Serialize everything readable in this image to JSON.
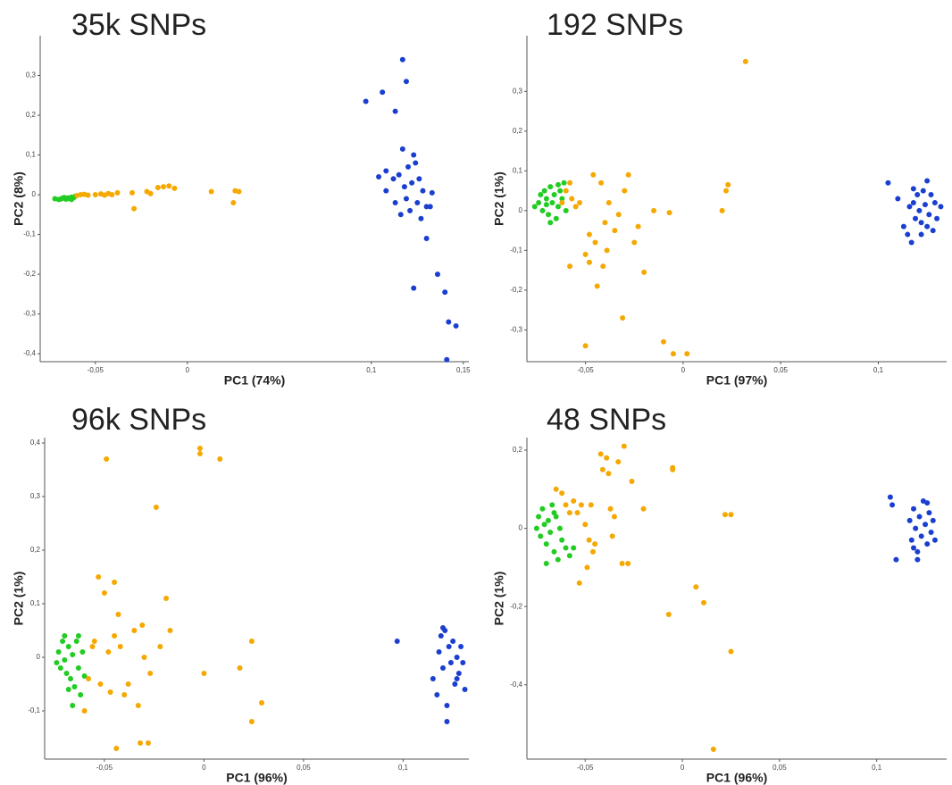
{
  "chart_data": [
    {
      "type": "scatter",
      "title": "35k SNPs",
      "x_label": "PC1 (74%)",
      "y_label": "PC2 (8%)",
      "xlim": [
        -0.08,
        0.153
      ],
      "ylim": [
        -0.42,
        0.4
      ],
      "xticks": [
        {
          "value": -0.05,
          "label": "-0,05"
        },
        0,
        {
          "value": 0.1,
          "label": "0,1"
        },
        {
          "value": 0.15,
          "label": "0,15"
        }
      ],
      "yticks": [
        {
          "value": 0.3,
          "label": "0,3"
        },
        {
          "value": 0.2,
          "label": "0,2"
        },
        {
          "value": 0.1,
          "label": "0,1"
        },
        0,
        {
          "value": -0.1,
          "label": "-0,1"
        },
        {
          "value": -0.2,
          "label": "-0,2"
        },
        {
          "value": -0.3,
          "label": "-0,3"
        },
        {
          "value": -0.4,
          "label": "-0,4"
        }
      ],
      "series": [
        {
          "color": "#22cc22",
          "x": [
            -0.072,
            -0.07,
            -0.068,
            -0.066,
            -0.065,
            -0.064,
            -0.063,
            -0.062,
            -0.061,
            -0.067,
            -0.069,
            -0.063
          ],
          "y": [
            -0.01,
            -0.012,
            -0.009,
            -0.011,
            -0.008,
            -0.01,
            -0.006,
            -0.008,
            -0.004,
            -0.007,
            -0.011,
            -0.012
          ]
        },
        {
          "color": "#f5a800",
          "x": [
            -0.06,
            -0.058,
            -0.056,
            -0.054,
            -0.05,
            -0.047,
            -0.045,
            -0.043,
            -0.041,
            -0.038,
            -0.03,
            -0.029,
            -0.022,
            -0.02,
            -0.016,
            -0.013,
            -0.01,
            -0.007,
            0.013,
            0.025,
            0.026,
            0.028
          ],
          "y": [
            -0.002,
            0,
            0.001,
            -0.001,
            0,
            0.002,
            -0.001,
            0.003,
            0,
            0.005,
            0.005,
            -0.035,
            0.008,
            0.003,
            0.018,
            0.02,
            0.022,
            0.016,
            0.008,
            -0.02,
            0.01,
            0.008
          ]
        },
        {
          "color": "#1a3fd0",
          "x": [
            0.097,
            0.106,
            0.113,
            0.117,
            0.119,
            0.117,
            0.123,
            0.104,
            0.108,
            0.112,
            0.115,
            0.118,
            0.12,
            0.122,
            0.124,
            0.126,
            0.128,
            0.119,
            0.121,
            0.125,
            0.13,
            0.132,
            0.116,
            0.113,
            0.127,
            0.13,
            0.136,
            0.123,
            0.14,
            0.142,
            0.146,
            0.141,
            0.108,
            0.133
          ],
          "y": [
            0.235,
            0.258,
            0.21,
            0.34,
            0.285,
            0.115,
            0.1,
            0.045,
            0.06,
            0.04,
            0.05,
            0.02,
            0.07,
            0.03,
            0.08,
            0.04,
            0.01,
            -0.01,
            -0.04,
            -0.02,
            -0.03,
            -0.03,
            -0.05,
            -0.02,
            -0.06,
            -0.11,
            -0.2,
            -0.235,
            -0.245,
            -0.32,
            -0.33,
            -0.415,
            0.01,
            0.005
          ]
        }
      ]
    },
    {
      "type": "scatter",
      "title": "192 SNPs",
      "x_label": "PC1 (97%)",
      "y_label": "PC2 (1%)",
      "xlim": [
        -0.08,
        0.135
      ],
      "ylim": [
        -0.38,
        0.44
      ],
      "xticks": [
        {
          "value": -0.05,
          "label": "-0,05"
        },
        0,
        {
          "value": 0.05,
          "label": "0,05"
        },
        {
          "value": 0.1,
          "label": "0,1"
        }
      ],
      "yticks": [
        {
          "value": 0.3,
          "label": "0,3"
        },
        {
          "value": 0.2,
          "label": "0,2"
        },
        {
          "value": 0.1,
          "label": "0,1"
        },
        0,
        {
          "value": -0.1,
          "label": "-0,1"
        },
        {
          "value": -0.2,
          "label": "-0,2"
        },
        {
          "value": -0.3,
          "label": "-0,3"
        }
      ],
      "series": [
        {
          "color": "#22cc22",
          "x": [
            -0.076,
            -0.074,
            -0.073,
            -0.072,
            -0.071,
            -0.07,
            -0.069,
            -0.068,
            -0.067,
            -0.066,
            -0.065,
            -0.064,
            -0.063,
            -0.062,
            -0.061,
            -0.06,
            -0.068,
            -0.07,
            -0.064
          ],
          "y": [
            0.01,
            0.02,
            0.04,
            0,
            0.05,
            0.03,
            -0.01,
            0.06,
            0.02,
            0.04,
            -0.02,
            0.01,
            0.05,
            0.03,
            0.07,
            0,
            -0.03,
            0.015,
            0.065
          ]
        },
        {
          "color": "#f5a800",
          "x": [
            -0.062,
            -0.06,
            -0.058,
            -0.057,
            -0.055,
            -0.053,
            -0.058,
            -0.05,
            -0.048,
            -0.046,
            -0.045,
            -0.044,
            -0.042,
            -0.04,
            -0.039,
            -0.038,
            -0.035,
            -0.033,
            -0.031,
            -0.03,
            -0.028,
            -0.025,
            -0.023,
            -0.02,
            -0.015,
            -0.01,
            -0.007,
            -0.005,
            0.002,
            0.02,
            0.022,
            0.023,
            0.032,
            -0.05,
            -0.048,
            -0.041
          ],
          "y": [
            0.02,
            0.05,
            0.07,
            0.03,
            0.01,
            0.02,
            -0.14,
            -0.11,
            -0.06,
            0.09,
            -0.08,
            -0.19,
            0.07,
            -0.03,
            -0.1,
            0.02,
            -0.05,
            -0.01,
            -0.27,
            0.05,
            0.09,
            -0.08,
            -0.04,
            -0.155,
            0,
            -0.33,
            -0.005,
            -0.36,
            -0.36,
            0,
            0.05,
            0.065,
            0.375,
            -0.34,
            -0.13,
            -0.14
          ]
        },
        {
          "color": "#1a3fd0",
          "x": [
            0.105,
            0.11,
            0.113,
            0.115,
            0.116,
            0.117,
            0.118,
            0.119,
            0.12,
            0.121,
            0.122,
            0.123,
            0.124,
            0.125,
            0.126,
            0.127,
            0.128,
            0.129,
            0.13,
            0.132,
            0.122,
            0.118,
            0.125
          ],
          "y": [
            0.07,
            0.03,
            -0.04,
            -0.06,
            0.01,
            -0.08,
            0.02,
            -0.02,
            0.04,
            0,
            -0.03,
            0.05,
            0.015,
            0.075,
            -0.01,
            0.04,
            -0.05,
            0.02,
            -0.02,
            0.01,
            -0.06,
            0.055,
            -0.04
          ]
        }
      ]
    },
    {
      "type": "scatter",
      "title": "96k SNPs",
      "x_label": "PC1 (96%)",
      "y_label": "PC2 (1%)",
      "xlim": [
        -0.08,
        0.133
      ],
      "ylim": [
        -0.19,
        0.41
      ],
      "xticks": [
        {
          "value": -0.05,
          "label": "-0,05"
        },
        0,
        {
          "value": 0.05,
          "label": "0,05"
        },
        {
          "value": 0.1,
          "label": "0,1"
        }
      ],
      "yticks": [
        {
          "value": 0.4,
          "label": "0,4"
        },
        {
          "value": 0.3,
          "label": "0,3"
        },
        {
          "value": 0.2,
          "label": "0,2"
        },
        {
          "value": 0.1,
          "label": "0,1"
        },
        0,
        {
          "value": -0.1,
          "label": "-0,1"
        }
      ],
      "series": [
        {
          "color": "#22cc22",
          "x": [
            -0.074,
            -0.073,
            -0.072,
            -0.071,
            -0.07,
            -0.069,
            -0.068,
            -0.067,
            -0.066,
            -0.065,
            -0.064,
            -0.063,
            -0.062,
            -0.061,
            -0.06,
            -0.066,
            -0.07,
            -0.068,
            -0.063
          ],
          "y": [
            -0.01,
            0.01,
            -0.02,
            0.03,
            -0.005,
            -0.03,
            0.02,
            -0.04,
            0.005,
            -0.055,
            0.03,
            -0.02,
            -0.07,
            0.01,
            -0.035,
            -0.09,
            0.04,
            -0.06,
            0.04
          ]
        },
        {
          "color": "#f5a800",
          "x": [
            -0.06,
            -0.058,
            -0.056,
            -0.055,
            -0.053,
            -0.052,
            -0.05,
            -0.049,
            -0.048,
            -0.047,
            -0.045,
            -0.044,
            -0.043,
            -0.042,
            -0.04,
            -0.038,
            -0.035,
            -0.033,
            -0.032,
            -0.031,
            -0.028,
            -0.027,
            -0.024,
            -0.022,
            -0.019,
            -0.017,
            -0.002,
            -0.002,
            0,
            0.008,
            0.018,
            0.024,
            0.024,
            0.029,
            -0.045,
            -0.03
          ],
          "y": [
            -0.1,
            -0.04,
            0.02,
            0.03,
            0.15,
            -0.05,
            0.12,
            0.37,
            0.01,
            -0.065,
            0.14,
            -0.17,
            0.08,
            0.02,
            -0.07,
            -0.05,
            0.05,
            -0.09,
            -0.16,
            0.06,
            -0.16,
            -0.03,
            0.28,
            0.02,
            0.11,
            0.05,
            0.39,
            0.38,
            -0.03,
            0.37,
            -0.02,
            0.03,
            -0.12,
            -0.085,
            0.04,
            0
          ]
        },
        {
          "color": "#1a3fd0",
          "x": [
            0.097,
            0.115,
            0.117,
            0.118,
            0.119,
            0.12,
            0.121,
            0.122,
            0.123,
            0.124,
            0.125,
            0.126,
            0.127,
            0.128,
            0.129,
            0.13,
            0.131,
            0.122,
            0.12,
            0.127
          ],
          "y": [
            0.03,
            -0.04,
            -0.07,
            0.01,
            0.04,
            -0.02,
            0.05,
            -0.09,
            0.02,
            -0.01,
            0.03,
            -0.05,
            0,
            -0.03,
            0.02,
            -0.01,
            -0.06,
            -0.12,
            0.055,
            -0.04
          ]
        }
      ]
    },
    {
      "type": "scatter",
      "title": "48 SNPs",
      "x_label": "PC1 (96%)",
      "y_label": "PC2 (1%)",
      "xlim": [
        -0.08,
        0.136
      ],
      "ylim": [
        -0.59,
        0.232
      ],
      "xticks": [
        {
          "value": -0.05,
          "label": "-0,05"
        },
        0,
        {
          "value": 0.05,
          "label": "0,05"
        },
        {
          "value": 0.1,
          "label": "0,1"
        }
      ],
      "yticks": [
        {
          "value": 0.2,
          "label": "0,2"
        },
        0,
        {
          "value": -0.2,
          "label": "-0,2"
        },
        {
          "value": -0.4,
          "label": "-0,4"
        }
      ],
      "series": [
        {
          "color": "#22cc22",
          "x": [
            -0.075,
            -0.074,
            -0.073,
            -0.072,
            -0.071,
            -0.07,
            -0.069,
            -0.068,
            -0.067,
            -0.066,
            -0.065,
            -0.064,
            -0.063,
            -0.062,
            -0.06,
            -0.058,
            -0.056,
            -0.07,
            -0.066
          ],
          "y": [
            0,
            0.03,
            -0.02,
            0.05,
            0.01,
            -0.04,
            0.02,
            -0.01,
            0.06,
            -0.06,
            0.03,
            -0.08,
            0,
            -0.03,
            -0.05,
            -0.07,
            -0.05,
            -0.09,
            0.04
          ]
        },
        {
          "color": "#f5a800",
          "x": [
            -0.065,
            -0.062,
            -0.06,
            -0.058,
            -0.056,
            -0.054,
            -0.052,
            -0.05,
            -0.049,
            -0.048,
            -0.047,
            -0.046,
            -0.045,
            -0.053,
            -0.042,
            -0.041,
            -0.039,
            -0.038,
            -0.037,
            -0.035,
            -0.033,
            -0.031,
            -0.03,
            -0.028,
            -0.026,
            -0.02,
            -0.007,
            -0.005,
            -0.005,
            0.007,
            0.011,
            0.016,
            0.022,
            0.025,
            0.025,
            -0.036
          ],
          "y": [
            0.1,
            0.09,
            0.06,
            0.04,
            0.07,
            0.04,
            0.06,
            0.01,
            -0.1,
            -0.03,
            0.06,
            -0.06,
            -0.04,
            -0.14,
            0.19,
            0.15,
            0.18,
            0.14,
            0.05,
            0.03,
            0.17,
            -0.09,
            0.21,
            -0.09,
            0.12,
            0.05,
            -0.22,
            0.15,
            0.155,
            -0.15,
            -0.19,
            -0.565,
            0.035,
            0.035,
            -0.315,
            -0.02
          ]
        },
        {
          "color": "#1a3fd0",
          "x": [
            0.107,
            0.108,
            0.11,
            0.117,
            0.118,
            0.119,
            0.12,
            0.121,
            0.122,
            0.123,
            0.124,
            0.125,
            0.126,
            0.127,
            0.128,
            0.129,
            0.13,
            0.121,
            0.126,
            0.119
          ],
          "y": [
            0.08,
            0.06,
            -0.08,
            0.02,
            -0.03,
            0.05,
            0,
            -0.06,
            0.03,
            -0.02,
            0.07,
            0.01,
            -0.04,
            0.04,
            -0.01,
            0.02,
            -0.03,
            -0.08,
            0.065,
            -0.05
          ]
        }
      ]
    }
  ]
}
